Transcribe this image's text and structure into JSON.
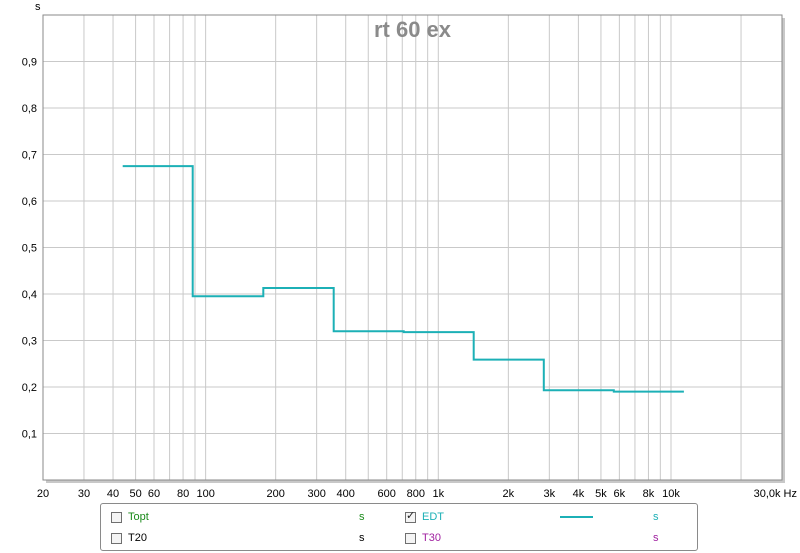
{
  "chart_data": {
    "type": "line",
    "title": "rt 60 ex",
    "ylabel": "s",
    "xlabel": "Hz",
    "x_scale": "log",
    "xlim": [
      20,
      30000
    ],
    "ylim": [
      0,
      1.0
    ],
    "grid": true,
    "y_ticks": [
      "0,1",
      "0,2",
      "0,3",
      "0,4",
      "0,5",
      "0,6",
      "0,7",
      "0,8",
      "0,9"
    ],
    "x_ticks": [
      {
        "v": 20,
        "label": "20"
      },
      {
        "v": 30,
        "label": "30"
      },
      {
        "v": 40,
        "label": "40"
      },
      {
        "v": 50,
        "label": "50"
      },
      {
        "v": 60,
        "label": "60"
      },
      {
        "v": 80,
        "label": "80"
      },
      {
        "v": 100,
        "label": "100"
      },
      {
        "v": 200,
        "label": "200"
      },
      {
        "v": 300,
        "label": "300"
      },
      {
        "v": 400,
        "label": "400"
      },
      {
        "v": 600,
        "label": "600"
      },
      {
        "v": 800,
        "label": "800"
      },
      {
        "v": 1000,
        "label": "1k"
      },
      {
        "v": 2000,
        "label": "2k"
      },
      {
        "v": 3000,
        "label": "3k"
      },
      {
        "v": 4000,
        "label": "4k"
      },
      {
        "v": 5000,
        "label": "5k"
      },
      {
        "v": 6000,
        "label": "6k"
      },
      {
        "v": 8000,
        "label": "8k"
      },
      {
        "v": 10000,
        "label": "10k"
      },
      {
        "v": 30000,
        "label": "30,0k Hz"
      }
    ],
    "series": [
      {
        "name": "EDT",
        "color": "#1cb0b6",
        "step": true,
        "points": [
          [
            44,
            0.675
          ],
          [
            88,
            0.675
          ],
          [
            88,
            0.395
          ],
          [
            177,
            0.395
          ],
          [
            177,
            0.413
          ],
          [
            355,
            0.413
          ],
          [
            355,
            0.32
          ],
          [
            710,
            0.32
          ],
          [
            710,
            0.318
          ],
          [
            1420,
            0.318
          ],
          [
            1420,
            0.259
          ],
          [
            2840,
            0.259
          ],
          [
            2840,
            0.193
          ],
          [
            5680,
            0.193
          ],
          [
            5680,
            0.19
          ],
          [
            11360,
            0.19
          ]
        ]
      }
    ]
  },
  "legend": {
    "items": [
      {
        "label": "Topt",
        "unit": "s",
        "checked": false,
        "label_color": "#1a8a1a",
        "unit_color": "#1a8a1a"
      },
      {
        "label": "EDT",
        "unit": "s",
        "checked": true,
        "label_color": "#1cb0b6",
        "unit_color": "#1cb0b6",
        "line_color": "#1cb0b6"
      },
      {
        "label": "T20",
        "unit": "s",
        "checked": false,
        "label_color": "#000000",
        "unit_color": "#000000"
      },
      {
        "label": "T30",
        "unit": "s",
        "checked": false,
        "label_color": "#a020a0",
        "unit_color": "#a020a0"
      }
    ],
    "check_mark": "✓"
  }
}
